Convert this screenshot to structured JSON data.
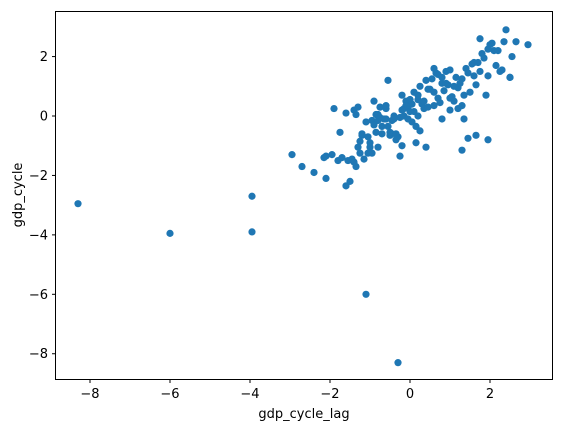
{
  "chart_data": {
    "type": "scatter",
    "xlabel": "gdp_cycle_lag",
    "ylabel": "gdp_cycle",
    "xlim": [
      -8.85,
      3.55
    ],
    "ylim": [
      -8.85,
      3.5
    ],
    "xticks": [
      -8,
      -6,
      -4,
      -2,
      0,
      2
    ],
    "yticks": [
      -8,
      -6,
      -4,
      -2,
      0,
      2
    ],
    "xtick_labels": [
      "−8",
      "−6",
      "−4",
      "−2",
      "0",
      "2"
    ],
    "ytick_labels": [
      "−8",
      "−6",
      "−4",
      "−2",
      "0",
      "2"
    ],
    "grid": false,
    "marker_color": "#1f77b4",
    "x": [
      -8.3,
      -6.0,
      -3.95,
      -3.95,
      -1.1,
      -0.3,
      -2.95,
      -2.7,
      -2.4,
      -2.15,
      -2.1,
      -2.1,
      -1.95,
      -1.8,
      -1.75,
      -1.6,
      -1.55,
      -1.5,
      -1.45,
      -1.4,
      -1.35,
      -1.3,
      -1.25,
      -1.2,
      -1.15,
      -1.1,
      -1.05,
      -1.0,
      -0.95,
      -0.9,
      -0.85,
      -0.8,
      -0.75,
      -0.7,
      -0.6,
      -0.55,
      -0.5,
      -0.45,
      -0.35,
      -0.25,
      -0.2,
      -0.15,
      -0.1,
      -0.05,
      0.0,
      0.05,
      0.1,
      0.15,
      0.2,
      0.3,
      0.4,
      0.5,
      0.6,
      0.7,
      0.8,
      0.9,
      1.0,
      1.1,
      1.2,
      1.3,
      1.4,
      1.5,
      1.6,
      1.7,
      1.8,
      1.9,
      2.0,
      2.1,
      2.2,
      2.3,
      2.4,
      2.55,
      2.65,
      2.95,
      -1.9,
      -1.7,
      -1.6,
      -1.35,
      -1.3,
      -1.2,
      -1.0,
      -0.9,
      -0.8,
      -0.7,
      -0.6,
      -0.5,
      -0.4,
      -0.3,
      -0.2,
      -0.1,
      0.0,
      0.1,
      0.2,
      0.25,
      0.35,
      0.45,
      0.55,
      0.65,
      0.75,
      0.85,
      0.95,
      1.05,
      1.15,
      1.25,
      1.35,
      1.45,
      1.55,
      1.65,
      1.75,
      1.85,
      1.95,
      2.05,
      2.15,
      2.35,
      2.5,
      -1.4,
      -1.25,
      -1.05,
      -0.95,
      -0.85,
      -0.75,
      -0.65,
      -0.55,
      -0.45,
      -0.35,
      -0.25,
      -0.15,
      -0.05,
      0.05,
      0.15,
      0.25,
      0.35,
      0.45,
      0.6,
      0.7,
      0.8,
      0.9,
      1.0,
      1.1,
      1.2,
      1.3,
      1.45,
      1.6,
      1.75,
      1.95,
      2.25,
      2.5,
      -0.8,
      -0.6,
      -0.4,
      -0.2,
      0.0,
      0.2,
      0.4,
      0.6,
      0.8,
      1.0,
      1.3,
      1.35,
      1.65,
      1.95
    ],
    "y": [
      -2.95,
      -3.95,
      -2.7,
      -3.9,
      -6.0,
      -8.3,
      -1.3,
      -1.7,
      -1.9,
      -1.4,
      -2.1,
      -1.35,
      -1.3,
      -1.5,
      -0.55,
      -2.35,
      -1.5,
      -2.2,
      -1.45,
      0.2,
      -1.7,
      -1.05,
      -1.25,
      -0.65,
      -1.45,
      -0.2,
      -0.7,
      -0.9,
      -0.15,
      0.5,
      0.05,
      -1.05,
      0.3,
      -0.35,
      -0.1,
      1.2,
      -0.65,
      -0.6,
      -0.8,
      -1.35,
      -1.0,
      0.25,
      0.5,
      0.3,
      0.55,
      0.4,
      0.15,
      -0.9,
      0.7,
      0.4,
      1.2,
      0.9,
      1.6,
      0.6,
      1.1,
      1.1,
      0.6,
      0.5,
      0.95,
      1.25,
      1.6,
      0.8,
      1.8,
      1.8,
      2.1,
      0.7,
      2.4,
      2.2,
      2.2,
      1.55,
      2.9,
      2.0,
      2.5,
      2.4,
      0.25,
      -1.4,
      0.1,
      0.05,
      0.3,
      -0.6,
      -1.05,
      -0.3,
      -0.15,
      -0.6,
      0.25,
      -0.55,
      0.0,
      -0.7,
      0.7,
      0.35,
      0.15,
      0.8,
      0.55,
      1.0,
      0.25,
      0.3,
      1.25,
      1.45,
      0.45,
      0.85,
      1.05,
      0.65,
      1.3,
      1.1,
      0.7,
      1.45,
      1.75,
      1.05,
      2.6,
      1.95,
      1.35,
      2.45,
      1.7,
      2.5,
      1.3,
      -1.55,
      -0.85,
      -1.25,
      -1.25,
      -0.55,
      -0.05,
      -0.1,
      -0.35,
      -0.15,
      -0.6,
      -0.05,
      0.0,
      -0.1,
      -0.2,
      -0.35,
      -0.5,
      0.5,
      0.9,
      0.35,
      1.4,
      1.3,
      1.5,
      1.55,
      1.0,
      0.25,
      0.35,
      -0.75,
      1.35,
      1.5,
      -0.8,
      1.5,
      1.3,
      0.05,
      0.35,
      -0.1,
      0.2,
      0.55,
      0.0,
      -1.05,
      0.8,
      -0.1,
      0.2,
      -1.15,
      -0.1,
      -0.65,
      2.25
    ]
  }
}
